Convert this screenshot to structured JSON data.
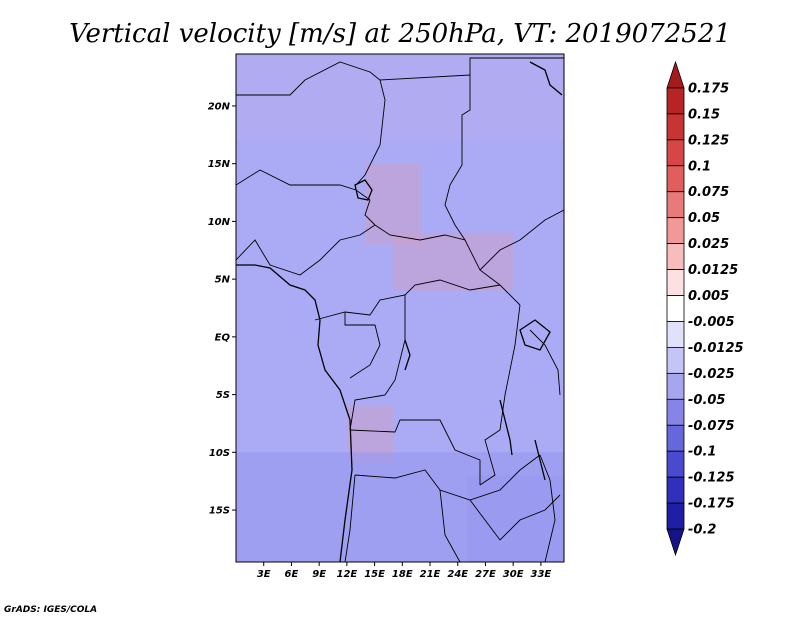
{
  "chart_data": {
    "type": "heatmap",
    "title": "Vertical velocity [m/s] at 250hPa, VT: 2019072521",
    "variable": "Vertical velocity",
    "units": "m/s",
    "level": "250hPa",
    "valid_time": "2019072521",
    "x_ticks": [
      {
        "value": 3,
        "label": "3E"
      },
      {
        "value": 6,
        "label": "6E"
      },
      {
        "value": 9,
        "label": "9E"
      },
      {
        "value": 12,
        "label": "12E"
      },
      {
        "value": 15,
        "label": "15E"
      },
      {
        "value": 18,
        "label": "18E"
      },
      {
        "value": 21,
        "label": "21E"
      },
      {
        "value": 24,
        "label": "24E"
      },
      {
        "value": 27,
        "label": "27E"
      },
      {
        "value": 30,
        "label": "30E"
      },
      {
        "value": 33,
        "label": "33E"
      }
    ],
    "y_ticks": [
      {
        "value": 20,
        "label": "20N"
      },
      {
        "value": 15,
        "label": "15N"
      },
      {
        "value": 10,
        "label": "10N"
      },
      {
        "value": 5,
        "label": "5N"
      },
      {
        "value": 0,
        "label": "EQ"
      },
      {
        "value": -5,
        "label": "5S"
      },
      {
        "value": -10,
        "label": "10S"
      },
      {
        "value": -15,
        "label": "15S"
      }
    ],
    "xlim": [
      0,
      35.5
    ],
    "ylim": [
      -19.5,
      24.5
    ],
    "colorbar": {
      "labels": [
        "0.175",
        "0.15",
        "0.125",
        "0.1",
        "0.075",
        "0.05",
        "0.025",
        "0.0125",
        "0.005",
        "-0.005",
        "-0.0125",
        "-0.025",
        "-0.05",
        "-0.075",
        "-0.1",
        "-0.125",
        "-0.175",
        "-0.2"
      ],
      "colors": [
        "#a51a1a",
        "#b82424",
        "#c83333",
        "#d64646",
        "#e05e5e",
        "#e87a7a",
        "#f19999",
        "#f7bcbc",
        "#fbe1e1",
        "#ffffff",
        "#e1e1fb",
        "#c4c4f6",
        "#a5a5f0",
        "#8585e8",
        "#6767dd",
        "#4a4ad0",
        "#3030bd",
        "#1e1ea6",
        "#141488"
      ]
    },
    "regions": [
      {
        "x": [
          0,
          35.5
        ],
        "y": [
          17,
          24.5
        ],
        "sign": "mixed"
      },
      {
        "x": [
          14,
          20
        ],
        "y": [
          8,
          15
        ],
        "sign": "positive"
      },
      {
        "x": [
          17,
          30
        ],
        "y": [
          4,
          9
        ],
        "sign": "positive"
      },
      {
        "x": [
          12,
          17
        ],
        "y": [
          -11,
          -6
        ],
        "sign": "positive"
      },
      {
        "x": [
          0,
          35.5
        ],
        "y": [
          -19.5,
          -10
        ],
        "sign": "negative"
      },
      {
        "x": [
          25,
          35.5
        ],
        "y": [
          -19.5,
          -12
        ],
        "sign": "negative"
      }
    ]
  },
  "credit": "GrADS: IGES/COLA"
}
